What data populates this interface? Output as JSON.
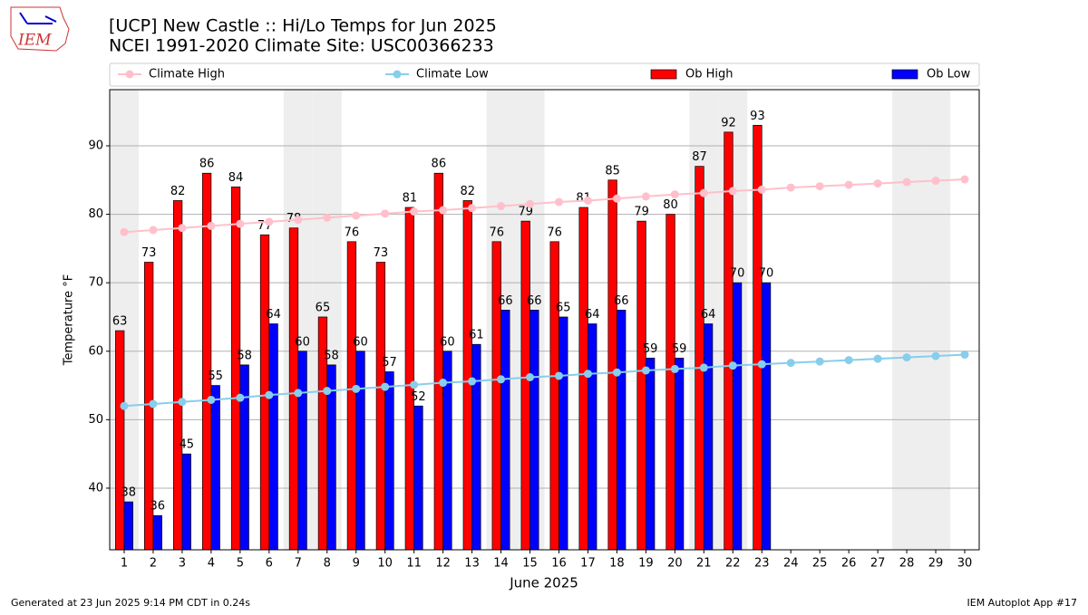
{
  "logo_text": "IEM",
  "footer_left": "Generated at 23 Jun 2025 9:14 PM CDT in 0.24s",
  "footer_right": "IEM Autoplot App #17",
  "chart_data": {
    "type": "bar",
    "title": "[UCP] New Castle :: Hi/Lo Temps for Jun 2025",
    "subtitle": "NCEI 1991-2020 Climate Site: USC00366233",
    "x_label": "June 2025",
    "y_label": "Temperature °F",
    "x": [
      1,
      2,
      3,
      4,
      5,
      6,
      7,
      8,
      9,
      10,
      11,
      12,
      13,
      14,
      15,
      16,
      17,
      18,
      19,
      20,
      21,
      22,
      23,
      24,
      25,
      26,
      27,
      28,
      29,
      30
    ],
    "xlim": [
      0.5,
      30.5
    ],
    "xticks": [
      1,
      2,
      3,
      4,
      5,
      6,
      7,
      8,
      9,
      10,
      11,
      12,
      13,
      14,
      15,
      16,
      17,
      18,
      19,
      20,
      21,
      22,
      23,
      24,
      25,
      26,
      27,
      28,
      29,
      30
    ],
    "ylim": [
      31,
      98.2
    ],
    "yticks": [
      40,
      50,
      60,
      70,
      80,
      90
    ],
    "grid": true,
    "shaded_days": [
      1,
      7,
      8,
      14,
      15,
      21,
      22,
      28,
      29
    ],
    "series": [
      {
        "name": "Climate High",
        "type": "line",
        "color": "#ffc0cb",
        "values": [
          77.4,
          77.7,
          78.0,
          78.3,
          78.6,
          78.9,
          79.2,
          79.5,
          79.8,
          80.1,
          80.4,
          80.6,
          80.9,
          81.2,
          81.5,
          81.8,
          82.0,
          82.3,
          82.6,
          82.9,
          83.1,
          83.4,
          83.6,
          83.9,
          84.1,
          84.3,
          84.5,
          84.7,
          84.9,
          85.1
        ]
      },
      {
        "name": "Climate Low",
        "type": "line",
        "color": "#87ceeb",
        "values": [
          52.0,
          52.3,
          52.6,
          52.9,
          53.2,
          53.6,
          53.9,
          54.2,
          54.5,
          54.8,
          55.1,
          55.4,
          55.6,
          55.9,
          56.2,
          56.4,
          56.7,
          56.9,
          57.2,
          57.4,
          57.6,
          57.9,
          58.1,
          58.3,
          58.5,
          58.7,
          58.9,
          59.1,
          59.3,
          59.5
        ]
      },
      {
        "name": "Ob High",
        "type": "bar",
        "color": "#ff0000",
        "values": [
          63,
          73,
          82,
          86,
          84,
          77,
          78,
          65,
          76,
          73,
          81,
          86,
          82,
          76,
          79,
          76,
          81,
          85,
          79,
          80,
          87,
          92,
          93,
          null,
          null,
          null,
          null,
          null,
          null,
          null
        ]
      },
      {
        "name": "Ob Low",
        "type": "bar",
        "color": "#0000ff",
        "values": [
          38,
          36,
          45,
          55,
          58,
          64,
          60,
          58,
          60,
          57,
          52,
          60,
          61,
          66,
          66,
          65,
          64,
          66,
          59,
          59,
          64,
          70,
          70,
          null,
          null,
          null,
          null,
          null,
          null,
          null
        ]
      }
    ]
  }
}
